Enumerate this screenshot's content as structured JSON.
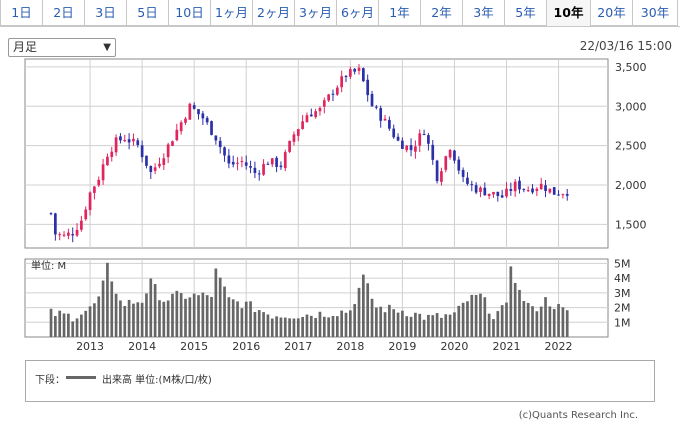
{
  "tabs": [
    {
      "label": "1日",
      "active": false
    },
    {
      "label": "2日",
      "active": false
    },
    {
      "label": "3日",
      "active": false
    },
    {
      "label": "5日",
      "active": false
    },
    {
      "label": "10日",
      "active": false
    },
    {
      "label": "1ヶ月",
      "active": false
    },
    {
      "label": "2ヶ月",
      "active": false
    },
    {
      "label": "3ヶ月",
      "active": false
    },
    {
      "label": "6ヶ月",
      "active": false
    },
    {
      "label": "1年",
      "active": false
    },
    {
      "label": "2年",
      "active": false
    },
    {
      "label": "3年",
      "active": false
    },
    {
      "label": "5年",
      "active": false
    },
    {
      "label": "10年",
      "active": true
    },
    {
      "label": "20年",
      "active": false
    },
    {
      "label": "30年",
      "active": false
    }
  ],
  "period_select": {
    "value": "月足"
  },
  "datetime": "22/03/16 15:00",
  "legend": {
    "label": "下段：",
    "text": "出来高 単位:(M株/口/枚)"
  },
  "copyright": "(c)Quants Research Inc.",
  "colors": {
    "up": "#e0245e",
    "down": "#2b2fa8",
    "volume": "#666666",
    "grid": "#d0d0d0"
  },
  "chart_data": [
    {
      "type": "candlestick",
      "title": "",
      "ylim": [
        1200,
        3600
      ],
      "y_ticks": [
        1500,
        2000,
        2500,
        3000,
        3500
      ],
      "y_tick_labels": [
        "1,500",
        "2,000",
        "2,500",
        "3,000",
        "3,500"
      ],
      "x_tick_labels": [
        "2013",
        "2014",
        "2015",
        "2016",
        "2017",
        "2018",
        "2019",
        "2020",
        "2021",
        "2022"
      ],
      "x_tick_positions": [
        2013,
        2014,
        2015,
        2016,
        2017,
        2018,
        2019,
        2020,
        2021,
        2022
      ],
      "x_range": [
        2011.75,
        2022.95
      ],
      "grid": true,
      "close_anchors": [
        [
          2012.25,
          1640
        ],
        [
          2012.33,
          1380
        ],
        [
          2012.5,
          1350
        ],
        [
          2012.67,
          1400
        ],
        [
          2012.83,
          1550
        ],
        [
          2013.0,
          1900
        ],
        [
          2013.17,
          2100
        ],
        [
          2013.33,
          2400
        ],
        [
          2013.5,
          2550
        ],
        [
          2013.67,
          2600
        ],
        [
          2013.92,
          2500
        ],
        [
          2014.17,
          2150
        ],
        [
          2014.42,
          2400
        ],
        [
          2014.67,
          2700
        ],
        [
          2014.92,
          3000
        ],
        [
          2015.17,
          2850
        ],
        [
          2015.42,
          2600
        ],
        [
          2015.67,
          2250
        ],
        [
          2015.92,
          2300
        ],
        [
          2016.17,
          2150
        ],
        [
          2016.42,
          2300
        ],
        [
          2016.67,
          2250
        ],
        [
          2016.92,
          2650
        ],
        [
          2017.17,
          2900
        ],
        [
          2017.42,
          2950
        ],
        [
          2017.67,
          3200
        ],
        [
          2017.92,
          3400
        ],
        [
          2018.17,
          3450
        ],
        [
          2018.42,
          3000
        ],
        [
          2018.67,
          2800
        ],
        [
          2018.92,
          2550
        ],
        [
          2019.17,
          2450
        ],
        [
          2019.42,
          2700
        ],
        [
          2019.67,
          2100
        ],
        [
          2019.92,
          2500
        ],
        [
          2020.17,
          2050
        ],
        [
          2020.42,
          1950
        ],
        [
          2020.67,
          1900
        ],
        [
          2020.92,
          1850
        ],
        [
          2021.17,
          2000
        ],
        [
          2021.42,
          1950
        ],
        [
          2021.67,
          2000
        ],
        [
          2021.92,
          1900
        ],
        [
          2022.17,
          1920
        ]
      ]
    },
    {
      "type": "bar",
      "ylabel": "単位: M",
      "ylim": [
        0,
        5.3
      ],
      "y_ticks": [
        1,
        2,
        3,
        4,
        5
      ],
      "y_tick_labels": [
        "1M",
        "2M",
        "3M",
        "4M",
        "5M"
      ],
      "volume_anchors": [
        [
          2012.25,
          1.6
        ],
        [
          2012.67,
          1.4
        ],
        [
          2013.0,
          1.9
        ],
        [
          2013.2,
          2.7
        ],
        [
          2013.33,
          4.8
        ],
        [
          2013.6,
          2.2
        ],
        [
          2014.0,
          2.5
        ],
        [
          2014.17,
          3.7
        ],
        [
          2014.4,
          2.5
        ],
        [
          2014.67,
          2.8
        ],
        [
          2015.0,
          2.8
        ],
        [
          2015.33,
          2.8
        ],
        [
          2015.42,
          4.5
        ],
        [
          2015.67,
          2.5
        ],
        [
          2016.0,
          2.2
        ],
        [
          2016.5,
          1.5
        ],
        [
          2017.0,
          1.5
        ],
        [
          2017.5,
          1.6
        ],
        [
          2018.0,
          1.8
        ],
        [
          2018.25,
          4.0
        ],
        [
          2018.5,
          2.0
        ],
        [
          2019.0,
          1.8
        ],
        [
          2019.5,
          1.3
        ],
        [
          2020.0,
          1.5
        ],
        [
          2020.25,
          2.5
        ],
        [
          2020.5,
          2.8
        ],
        [
          2020.75,
          1.5
        ],
        [
          2021.0,
          2.0
        ],
        [
          2021.08,
          5.0
        ],
        [
          2021.25,
          3.0
        ],
        [
          2021.5,
          1.8
        ],
        [
          2021.75,
          2.5
        ],
        [
          2022.0,
          2.0
        ],
        [
          2022.17,
          1.6
        ]
      ]
    }
  ]
}
